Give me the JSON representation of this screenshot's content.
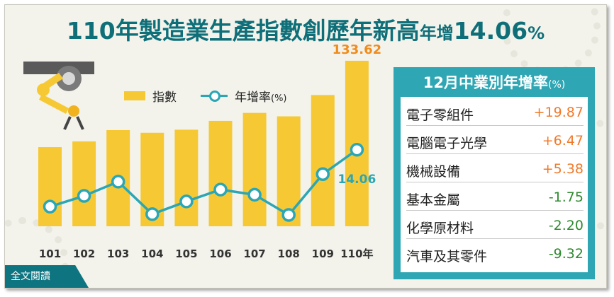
{
  "title": {
    "main": "110年製造業生產指數創歷年新高",
    "suffix_label": "年增",
    "suffix_value": "14.06",
    "suffix_unit": "%"
  },
  "legend": {
    "bar_label": "指數",
    "line_label": "年增率",
    "line_unit": "(%)"
  },
  "chart_data": {
    "type": "bar+line",
    "categories": [
      "101",
      "102",
      "103",
      "104",
      "105",
      "106",
      "107",
      "108",
      "109",
      "110年"
    ],
    "series": [
      {
        "name": "指數",
        "type": "bar",
        "values": [
          91.5,
          94.3,
          99.8,
          98.5,
          100.0,
          104.3,
          108.2,
          106.5,
          116.9,
          133.62
        ]
      },
      {
        "name": "年增率",
        "type": "line",
        "values": [
          -0.3,
          2.4,
          6.0,
          -2.2,
          1.0,
          4.0,
          2.7,
          -2.4,
          7.9,
          14.06
        ]
      }
    ],
    "data_labels": {
      "bar_last": "133.62",
      "line_last": "14.06"
    },
    "colors": {
      "bar": "#f6c934",
      "line": "#2ba6b5",
      "bar_label": "#f08c1e",
      "line_label": "#2ba6b5"
    }
  },
  "panel": {
    "title": "12月中業別年增率",
    "unit": "(%)",
    "rows": [
      {
        "name": "電子零組件",
        "value": "+19.87",
        "color": "#f07a2a"
      },
      {
        "name": "電腦電子光學",
        "value": "+6.47",
        "color": "#f07a2a"
      },
      {
        "name": "機械設備",
        "value": "+5.38",
        "color": "#f07a2a"
      },
      {
        "name": "基本金屬",
        "value": "-1.75",
        "color": "#2f8a2f"
      },
      {
        "name": "化學原材料",
        "value": "-2.20",
        "color": "#2f8a2f"
      },
      {
        "name": "汽車及其零件",
        "value": "-9.32",
        "color": "#2f8a2f"
      }
    ]
  },
  "button": {
    "label": "全文閱讀"
  }
}
